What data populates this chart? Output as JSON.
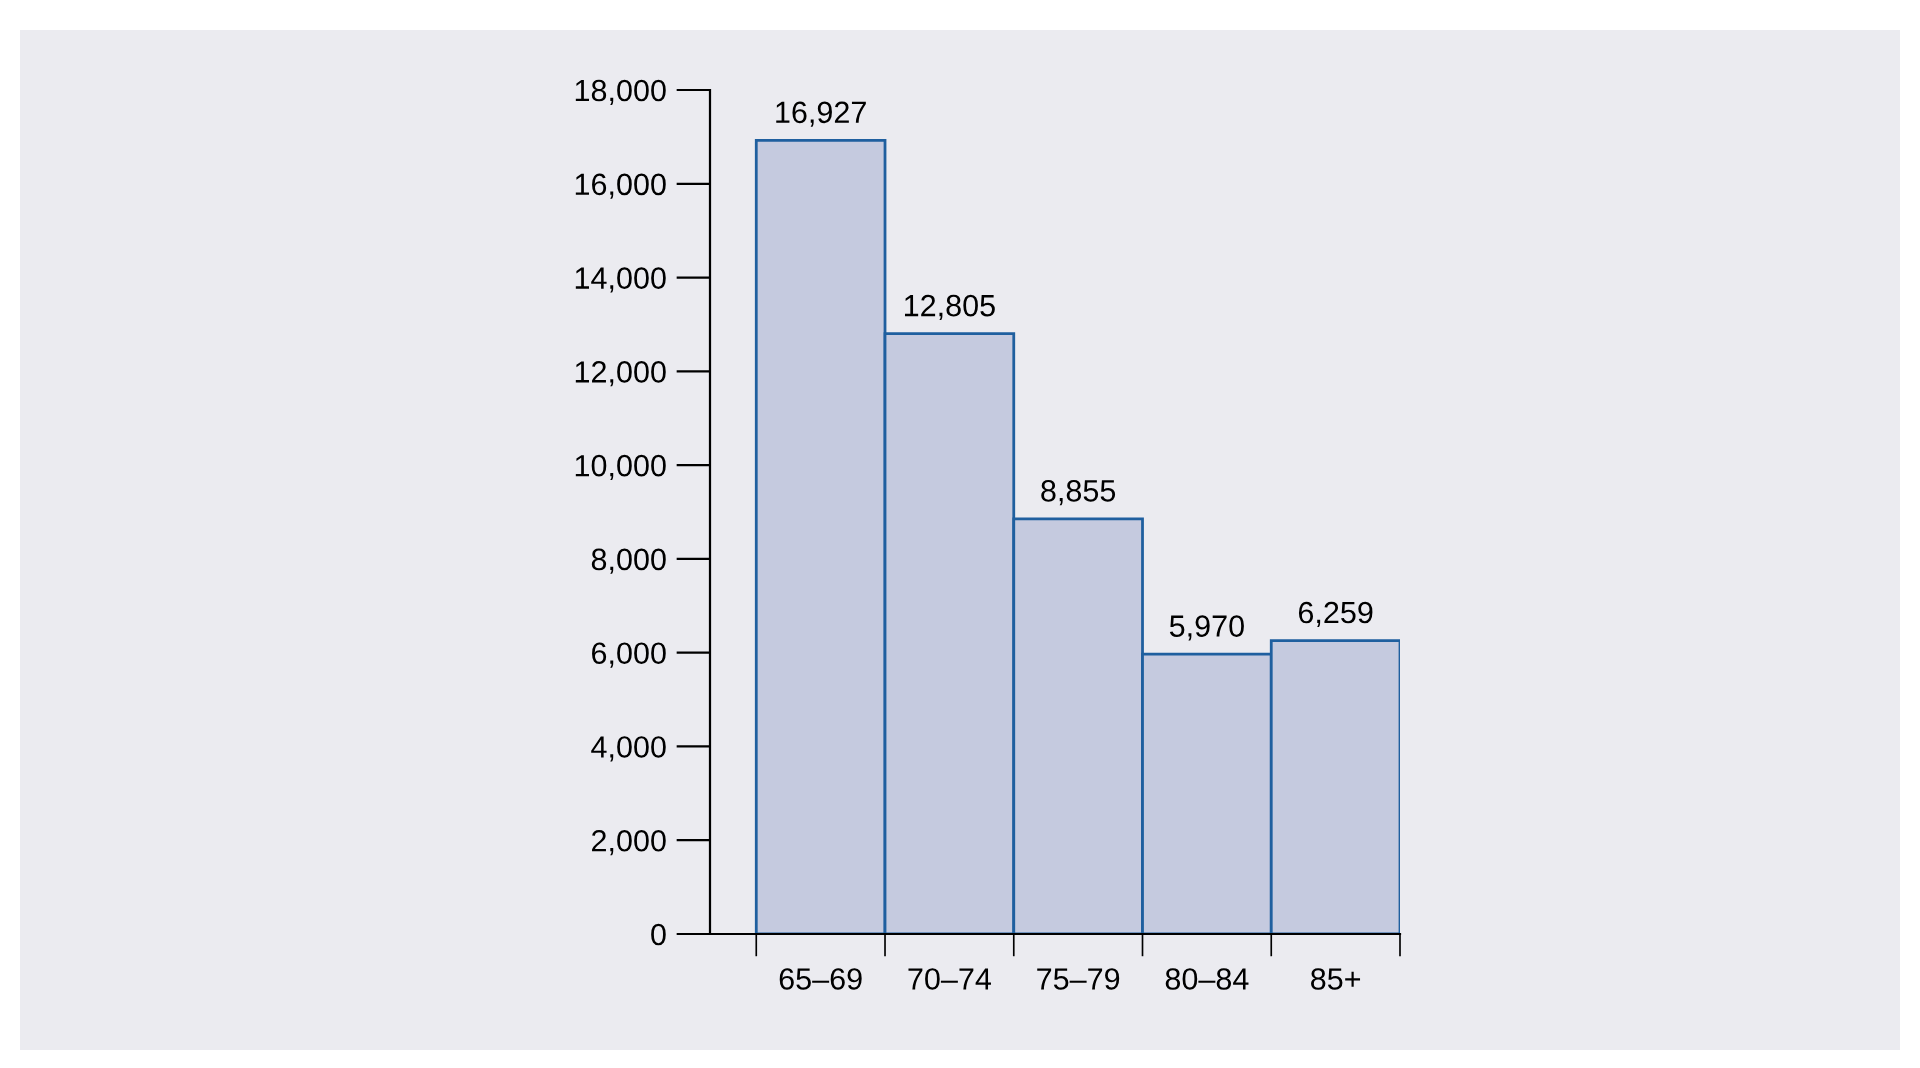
{
  "chart_data": {
    "type": "bar",
    "categories": [
      "65–69",
      "70–74",
      "75–79",
      "80–84",
      "85+"
    ],
    "values": [
      16927,
      12805,
      8855,
      5970,
      6259
    ],
    "color": "#c5cadf",
    "ylim": [
      0,
      18000
    ],
    "yticks": [
      {
        "value": 0,
        "label": "0"
      },
      {
        "value": 2000,
        "label": "2,000"
      },
      {
        "value": 4000,
        "label": "4,000"
      },
      {
        "value": 6000,
        "label": "6,000"
      },
      {
        "value": 8000,
        "label": "8,000"
      },
      {
        "value": 10000,
        "label": "10,000"
      },
      {
        "value": 12000,
        "label": "12,000"
      },
      {
        "value": 14000,
        "label": "14,000"
      },
      {
        "value": 16000,
        "label": "16,000"
      },
      {
        "value": 18000,
        "label": "18,000"
      }
    ],
    "value_labels": [
      "16,927",
      "12,805",
      "8,855",
      "5,970",
      "6,259"
    ],
    "grid": false,
    "legend": false
  }
}
